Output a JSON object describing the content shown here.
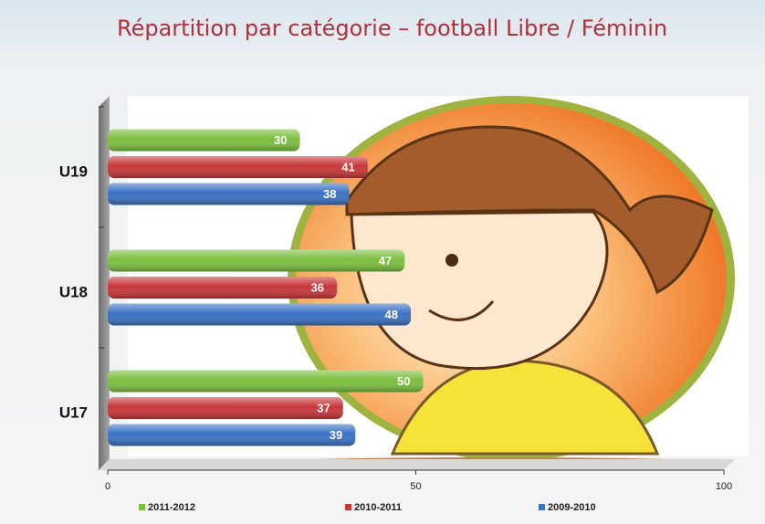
{
  "chart_data": {
    "type": "bar",
    "orientation": "horizontal",
    "title": "Répartition par catégorie – football Libre / Féminin",
    "categories": [
      "U19",
      "U18",
      "U17"
    ],
    "series": [
      {
        "name": "2011-2012",
        "color": "#7cbf3f",
        "values": [
          30,
          47,
          50
        ]
      },
      {
        "name": "2010-2011",
        "color": "#c8373a",
        "values": [
          41,
          36,
          37
        ]
      },
      {
        "name": "2009-2010",
        "color": "#3a72c4",
        "values": [
          38,
          48,
          39
        ]
      }
    ],
    "xlim": [
      0,
      100
    ],
    "xticks": [
      0,
      50,
      100
    ],
    "legend": "bottom"
  }
}
